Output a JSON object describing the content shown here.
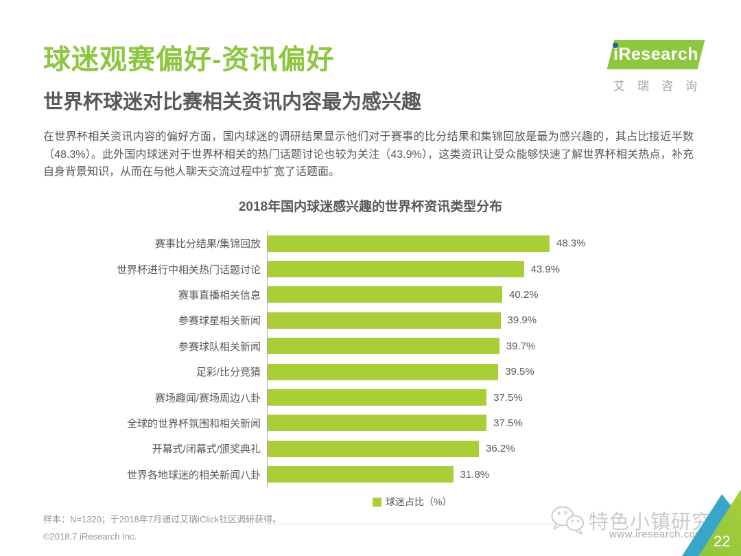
{
  "header": {
    "title": "球迷观赛偏好-资讯偏好",
    "subtitle": "世界杯球迷对比赛相关资讯内容最为感兴趣",
    "paragraph": "在世界杯相关资讯内容的偏好方面，国内球迷的调研结果显示他们对于赛事的比分结果和集锦回放是最为感兴趣的，其占比接近半数（48.3%）。此外国内球迷对于世界杯相关的热门话题讨论也较为关注（43.9%），这类资讯让受众能够快速了解世界杯相关热点，补充自身背景知识，从而在与他人聊天交流过程中扩宽了话题面。",
    "logo": {
      "brand": "iResearch",
      "brand_i": "i",
      "brand_rest": "Research",
      "brand_cn": "艾瑞咨询"
    }
  },
  "chart_data": {
    "type": "bar",
    "orientation": "horizontal",
    "title": "2018年国内球迷感兴趣的世界杯资讯类型分布",
    "categories": [
      "赛事比分结果/集锦回放",
      "世界杯进行中相关热门话题讨论",
      "赛事直播相关信息",
      "参赛球星相关新闻",
      "参赛球队相关新闻",
      "足彩/比分竞猜",
      "赛场趣闻/赛场周边八卦",
      "全球的世界杯氛围和相关新闻",
      "开幕式/闭幕式/颁奖典礼",
      "世界各地球迷的相关新闻八卦"
    ],
    "values": [
      48.3,
      43.9,
      40.2,
      39.9,
      39.7,
      39.5,
      37.5,
      37.5,
      36.2,
      31.8
    ],
    "value_labels": [
      "48.3%",
      "43.9%",
      "40.2%",
      "39.9%",
      "39.7%",
      "39.5%",
      "37.5%",
      "37.5%",
      "36.2%",
      "31.8%"
    ],
    "legend": "球迷占比（%）",
    "legend_position": "bottom",
    "xlabel": "",
    "ylabel": "",
    "xlim": [
      0,
      50
    ],
    "grid": false,
    "bar_color": "#A9CE38"
  },
  "footer": {
    "note": "样本：N=1320；于2018年7月通过艾瑞iClick社区调研获得。",
    "copyright": "©2018.7 iResearch Inc.",
    "watermark": "特色小镇研究院",
    "website": "www.iresearch.com.cn",
    "page_number": "22"
  },
  "colors": {
    "accent_green": "#8DC63F",
    "bar_green": "#A9CE38",
    "dark_text": "#595757",
    "corner_blue": "#38A5CB",
    "logo_dot_blue": "#2E5E9E"
  }
}
